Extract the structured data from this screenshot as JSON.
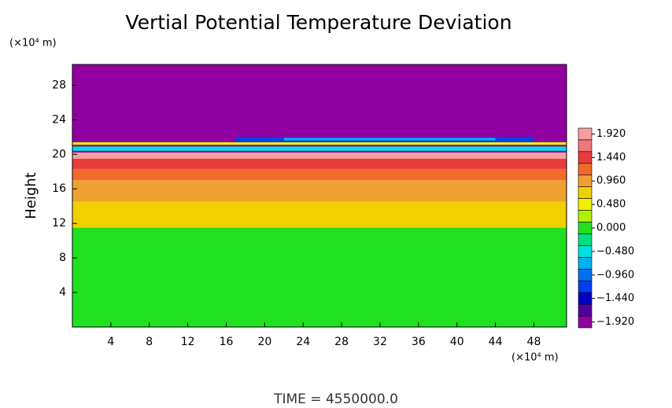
{
  "chart_data": {
    "type": "contour",
    "title": "Vertial Potential Temperature Deviation",
    "ylabel": "Height",
    "y_unit": "(×10⁴ m)",
    "x_unit": "(×10⁴ m)",
    "annotation": "TIME = 4550000.0",
    "xlim": [
      0,
      51.4
    ],
    "xticks": [
      4,
      8,
      12,
      16,
      20,
      24,
      28,
      32,
      36,
      40,
      44,
      48
    ],
    "ylim": [
      0,
      30.4
    ],
    "yticks": [
      4,
      8,
      12,
      16,
      20,
      24,
      28
    ],
    "levels": [
      1.92,
      1.68,
      1.44,
      1.2,
      0.96,
      0.72,
      0.48,
      0.24,
      0,
      -0.24,
      -0.48,
      -0.72,
      -0.96,
      -1.2,
      -1.44,
      -1.68,
      -1.92
    ],
    "colors": [
      "#f5a0a0",
      "#f07878",
      "#e83c3c",
      "#f06a2a",
      "#f0a030",
      "#f0d000",
      "#f0f000",
      "#b0f000",
      "#20e020",
      "#00e080",
      "#00e0e0",
      "#00b0f0",
      "#0070f0",
      "#0040f0",
      "#0000c0",
      "#5000a0",
      "#9000a0"
    ],
    "colorbar_ticks": [
      {
        "value": 1.92,
        "label": "1.920"
      },
      {
        "value": 1.44,
        "label": "1.440"
      },
      {
        "value": 0.96,
        "label": "0.960"
      },
      {
        "value": 0.48,
        "label": "0.480"
      },
      {
        "value": 0,
        "label": "0.000"
      },
      {
        "value": -0.48,
        "label": "−0.480"
      },
      {
        "value": -0.96,
        "label": "−0.960"
      },
      {
        "value": -1.44,
        "label": "−1.440"
      },
      {
        "value": -1.92,
        "label": "−1.920"
      }
    ],
    "regions": [
      {
        "x0": 0,
        "x1": 51.4,
        "y0": 0,
        "y1": 11.5,
        "value": 0
      },
      {
        "x0": 0,
        "x1": 51.4,
        "y0": 11.5,
        "y1": 14.5,
        "value": 0.72
      },
      {
        "x0": 0,
        "x1": 51.4,
        "y0": 14.5,
        "y1": 17,
        "value": 0.96
      },
      {
        "x0": 0,
        "x1": 51.4,
        "y0": 17,
        "y1": 18.3,
        "value": 1.2
      },
      {
        "x0": 0,
        "x1": 51.4,
        "y0": 18.3,
        "y1": 19.5,
        "value": 1.44
      },
      {
        "x0": 0,
        "x1": 51.4,
        "y0": 19.5,
        "y1": 20.2,
        "value": 1.92
      },
      {
        "x0": 0,
        "x1": 51.4,
        "y0": 20.2,
        "y1": 30.4,
        "value": -1.92
      },
      {
        "x0": 0,
        "x1": 51.4,
        "y0": 20.4,
        "y1": 20.9,
        "value": -0.48
      },
      {
        "x0": 0,
        "x1": 51.4,
        "y0": 21.1,
        "y1": 21.4,
        "value": 0.48
      },
      {
        "x0": 17,
        "x1": 48,
        "y0": 21.4,
        "y1": 22,
        "value": -1.2
      },
      {
        "x0": 22,
        "x1": 44,
        "y0": 21.6,
        "y1": 21.9,
        "value": -0.72
      }
    ]
  }
}
